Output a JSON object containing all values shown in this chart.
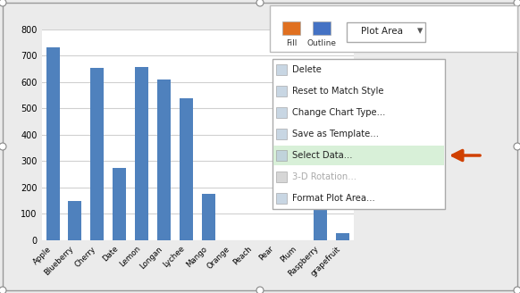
{
  "categories": [
    "Apple",
    "Blueberry",
    "Cherry",
    "Date",
    "Lemon",
    "Longan",
    "Lychee",
    "Mango",
    "Orange",
    "Peach",
    "Pear",
    "Plum",
    "Raspberry",
    "grapefruit"
  ],
  "values": [
    730,
    148,
    655,
    275,
    658,
    610,
    540,
    175,
    0,
    0,
    0,
    0,
    360,
    28
  ],
  "bar_color": "#4F81BD",
  "ylim": [
    0,
    800
  ],
  "yticks": [
    0,
    100,
    200,
    300,
    400,
    500,
    600,
    700,
    800
  ],
  "bg_chart": "#FFFFFF",
  "bg_outer": "#EBEBEB",
  "grid_color": "#D0D0D0",
  "context_menu": {
    "items": [
      "Delete",
      "Reset to Match Style",
      "Change Chart Type...",
      "Save as Template...",
      "Select Data...",
      "3-D Rotation...",
      "Format Plot Area..."
    ],
    "highlight_index": 4,
    "highlight_color": "#D8F0D8",
    "disabled_index": 5
  },
  "ribbon_label": "Plot Area",
  "arrow_color": "#D04000"
}
